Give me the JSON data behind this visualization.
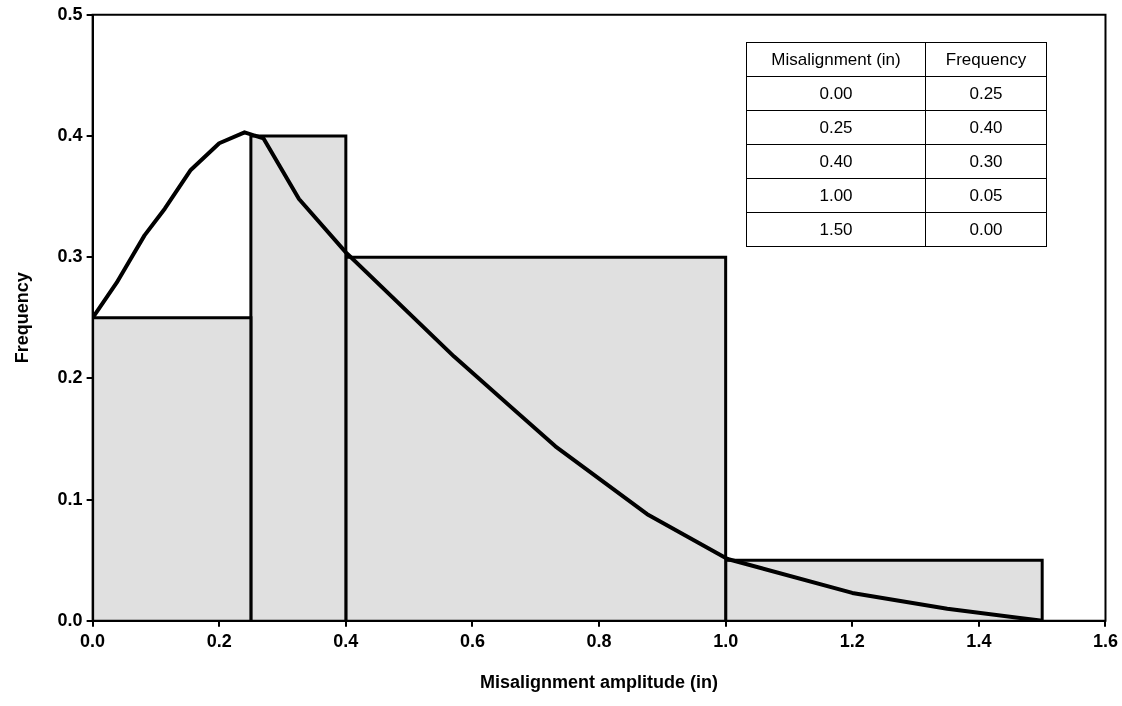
{
  "chart_data": {
    "type": "histogram",
    "xlabel": "Misalignment amplitude (in)",
    "ylabel": "Frequency",
    "bins": [
      0,
      0.25,
      0.4,
      1.0,
      1.5
    ],
    "values": [
      0.25,
      0.4,
      0.3,
      0.05
    ],
    "color": "#e0e0e0",
    "series": [
      {
        "type": "line",
        "color": "#000000",
        "x": [
          0,
          0.038,
          0.082,
          0.114,
          0.155,
          0.2,
          0.24,
          0.27,
          0.326,
          0.4,
          0.571,
          0.731,
          0.876,
          1.003,
          1.2,
          1.35,
          1.5
        ],
        "values": [
          0.25,
          0.279,
          0.318,
          0.34,
          0.372,
          0.394,
          0.403,
          0.398,
          0.348,
          0.304,
          0.218,
          0.144,
          0.088,
          0.051,
          0.023,
          0.01,
          0.0
        ]
      }
    ],
    "xlim": [
      0,
      1.6
    ],
    "xticks": [
      {
        "value": 0,
        "label": "0.0"
      },
      {
        "value": 0.2,
        "label": "0.2"
      },
      {
        "value": 0.4,
        "label": "0.4"
      },
      {
        "value": 0.6,
        "label": "0.6"
      },
      {
        "value": 0.8,
        "label": "0.8"
      },
      {
        "value": 1.0,
        "label": "1.0"
      },
      {
        "value": 1.2,
        "label": "1.2"
      },
      {
        "value": 1.4,
        "label": "1.4"
      },
      {
        "value": 1.6,
        "label": "1.6"
      }
    ],
    "ylim": [
      0,
      0.5
    ],
    "yticks": [
      {
        "value": 0,
        "label": "0.0"
      },
      {
        "value": 0.1,
        "label": "0.1"
      },
      {
        "value": 0.2,
        "label": "0.2"
      },
      {
        "value": 0.3,
        "label": "0.3"
      },
      {
        "value": 0.4,
        "label": "0.4"
      },
      {
        "value": 0.5,
        "label": "0.5"
      }
    ],
    "grid": false,
    "legend": false,
    "marker": "none",
    "line_style": "solid",
    "annotations": [
      "Misalignment (in)",
      "Frequency",
      "0.00",
      "0.25",
      "0.25",
      "0.40",
      "0.40",
      "0.30",
      "1.00",
      "0.05",
      "1.50",
      "0.00"
    ]
  }
}
